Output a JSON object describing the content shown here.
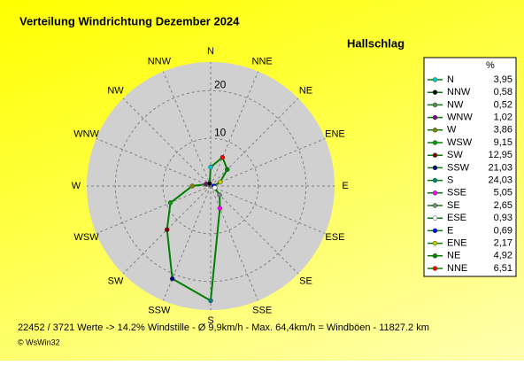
{
  "chart_data": {
    "type": "radar",
    "title": "Verteilung Windrichtung    Dezember 2024",
    "subtitle": "Hallschlag",
    "categories": [
      "N",
      "NNE",
      "NE",
      "ENE",
      "E",
      "ESE",
      "SE",
      "SSE",
      "S",
      "SSW",
      "SW",
      "WSW",
      "W",
      "WNW",
      "NW",
      "NNW"
    ],
    "values": [
      3.95,
      6.51,
      4.92,
      2.17,
      0.69,
      0.93,
      2.65,
      5.05,
      24.03,
      21.03,
      12.95,
      9.15,
      3.86,
      1.02,
      0.52,
      0.58
    ],
    "value_labels": [
      "3,95",
      "6,51",
      "4,92",
      "2,17",
      "0,69",
      "0,93",
      "2,65",
      "5,05",
      "24,03",
      "21,03",
      "12,95",
      "9,15",
      "3,86",
      "1,02",
      "0,52",
      "0,58"
    ],
    "marker_colors": [
      "#00c8c8",
      "#ff0000",
      "#008000",
      "#c8c800",
      "#0000ff",
      "#ffffff",
      "#808080",
      "#ff00ff",
      "#008080",
      "#000080",
      "#800000",
      "#00a000",
      "#808000",
      "#800080",
      "#608060",
      "#000000"
    ],
    "line_color": "#008000",
    "rlim": [
      0,
      26
    ],
    "rticks": [
      10,
      20
    ],
    "grid": true,
    "legend_title": "%",
    "footer": "22452 / 3721 Werte  -> 14.2% Windstille   -   Ø 9,9km/h  -  Max. 64,4km/h = Windböen   -   11827.2 km",
    "copyright": "© WsWin32"
  }
}
